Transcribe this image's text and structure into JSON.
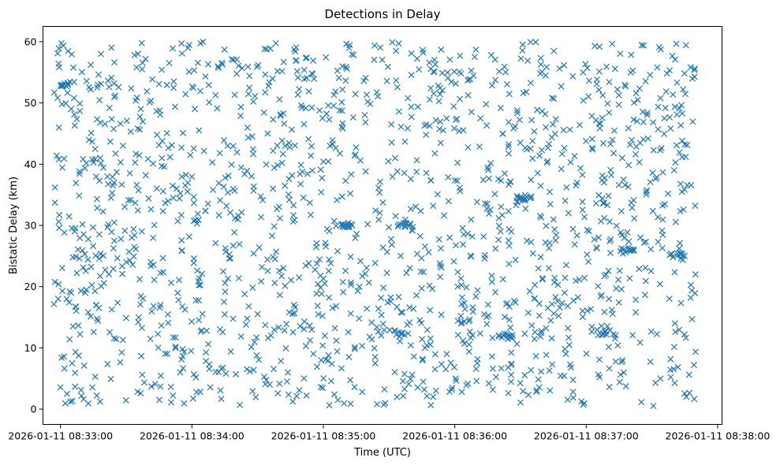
{
  "chart_data": {
    "type": "scatter",
    "title": "Detections in Delay",
    "xlabel": "Time (UTC)",
    "ylabel": "Bistatic Delay (km)",
    "marker": "x",
    "color": "#1f77b4",
    "grid": false,
    "legend": "none",
    "xlim": [
      "2026-01-11 08:32:52",
      "2026-01-11 08:38:02"
    ],
    "ylim": [
      -2.5,
      62.5
    ],
    "xticks": [
      "2026-01-11 08:33:00",
      "2026-01-11 08:34:00",
      "2026-01-11 08:35:00",
      "2026-01-11 08:36:00",
      "2026-01-11 08:37:00",
      "2026-01-11 08:38:00"
    ],
    "yticks": [
      "0",
      "10",
      "20",
      "30",
      "40",
      "50",
      "60"
    ],
    "data_range": {
      "x": [
        "2026-01-11 08:32:57",
        "2026-01-11 08:37:50"
      ],
      "y": [
        0.5,
        60
      ]
    },
    "approx_point_count": 1700,
    "clusters": [
      {
        "x": [
          "2026-01-11 08:35:08",
          "2026-01-11 08:35:12"
        ],
        "y": 30
      },
      {
        "x": [
          "2026-01-11 08:35:33",
          "2026-01-11 08:35:41"
        ],
        "y": 30
      },
      {
        "x": [
          "2026-01-11 08:36:15",
          "2026-01-11 08:36:27"
        ],
        "y": 12
      },
      {
        "x": [
          "2026-01-11 08:35:25",
          "2026-01-11 08:35:40"
        ],
        "y": 12.5
      },
      {
        "x": [
          "2026-01-11 08:37:05",
          "2026-01-11 08:37:15"
        ],
        "y": 12.5
      },
      {
        "x": [
          "2026-01-11 08:37:15",
          "2026-01-11 08:37:22"
        ],
        "y": 26
      },
      {
        "x": [
          "2026-01-11 08:37:38",
          "2026-01-11 08:37:45"
        ],
        "y": 25
      },
      {
        "x": [
          "2026-01-11 08:36:28",
          "2026-01-11 08:36:35"
        ],
        "y": 34.5
      },
      {
        "x": [
          "2026-01-11 08:33:00",
          "2026-01-11 08:33:05"
        ],
        "y": 53
      }
    ]
  }
}
